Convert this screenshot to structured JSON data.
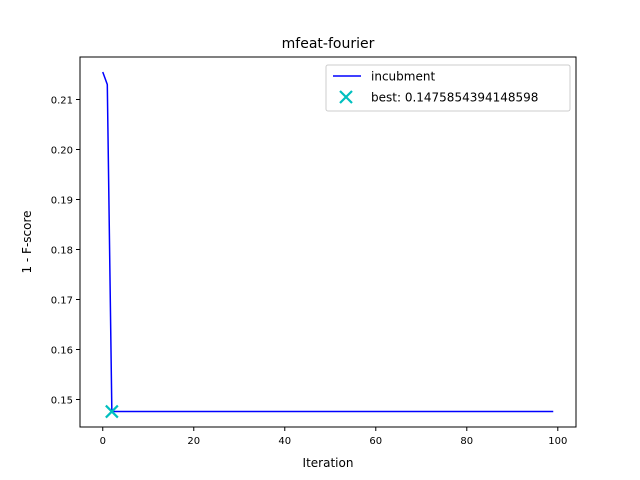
{
  "chart_data": {
    "type": "line",
    "title": "mfeat-fourier",
    "xlabel": "Iteration",
    "ylabel": "1 - F-score",
    "xlim": [
      -5,
      104
    ],
    "ylim": [
      0.1445,
      0.2185
    ],
    "xticks": [
      0,
      20,
      40,
      60,
      80,
      100
    ],
    "yticks": [
      0.15,
      0.16,
      0.17,
      0.18,
      0.19,
      0.2,
      0.21
    ],
    "ytick_labels": [
      "0.15",
      "0.16",
      "0.17",
      "0.18",
      "0.19",
      "0.20",
      "0.21"
    ],
    "grid": false,
    "legend_position": "top-right",
    "series": [
      {
        "name": "incubment",
        "color": "#0000ff",
        "x": [
          0,
          1,
          2,
          99
        ],
        "y": [
          0.2155,
          0.213,
          0.14759,
          0.14759
        ]
      }
    ],
    "best_point": {
      "label": "best: 0.1475854394148598",
      "x": 2,
      "y": 0.1475854394148598,
      "marker": "x",
      "color": "#00bfbf"
    }
  }
}
